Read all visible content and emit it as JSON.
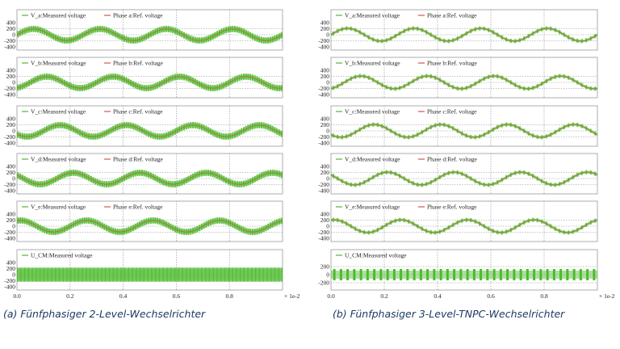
{
  "captions": {
    "a": "(a) Fünfphasiger 2-Level-Wechselrichter",
    "b": "(b) Fünfphasiger 3-Level-TNPC-Wechselrichter"
  },
  "colors": {
    "measured": "#4cbb2c",
    "reference": "#d9534f",
    "grid": "#8a8a8a",
    "frame": "#9a9a9a",
    "caption": "#1f3a64"
  },
  "chart_data": [
    {
      "type": "line",
      "id": "a",
      "inverter": "2-level",
      "x_tick_labels": [
        "0.0",
        "0.2",
        "0.4",
        "0.6",
        "0.8"
      ],
      "x_multiplier": "× 1e-2",
      "xlim": [
        0.0,
        1.0
      ],
      "panels": [
        {
          "id": "V_a",
          "legend": [
            "V_a:Measured voltage",
            "Phase a:Ref. voltage"
          ],
          "yticks": [
            "400",
            "200",
            "0",
            "-200",
            "-400"
          ],
          "ylim": [
            -400,
            400
          ],
          "series": [
            {
              "name": "V_a:Measured voltage",
              "kind": "pwm",
              "amplitude": 190,
              "frequency_periods": 4,
              "phase_deg": 0,
              "levels": [
                -300,
                300
              ]
            },
            {
              "name": "Phase a:Ref. voltage",
              "kind": "sine",
              "amplitude": 190,
              "frequency_periods": 4,
              "phase_deg": 0
            }
          ]
        },
        {
          "id": "V_b",
          "legend": [
            "V_b:Measured voltage",
            "Phase b:Ref. voltage"
          ],
          "yticks": [
            "400",
            "200",
            "0",
            "-200",
            "-400"
          ],
          "ylim": [
            -400,
            400
          ],
          "series": [
            {
              "name": "V_b:Measured voltage",
              "kind": "pwm",
              "amplitude": 190,
              "frequency_periods": 4,
              "phase_deg": -72,
              "levels": [
                -300,
                300
              ]
            },
            {
              "name": "Phase b:Ref. voltage",
              "kind": "sine",
              "amplitude": 190,
              "frequency_periods": 4,
              "phase_deg": -72
            }
          ]
        },
        {
          "id": "V_c",
          "legend": [
            "V_c:Measured voltage",
            "Phase c:Ref. voltage"
          ],
          "yticks": [
            "400",
            "200",
            "0",
            "-200",
            "-400"
          ],
          "ylim": [
            -400,
            400
          ],
          "series": [
            {
              "name": "V_c:Measured voltage",
              "kind": "pwm",
              "amplitude": 190,
              "frequency_periods": 4,
              "phase_deg": -144,
              "levels": [
                -300,
                300
              ]
            },
            {
              "name": "Phase c:Ref. voltage",
              "kind": "sine",
              "amplitude": 190,
              "frequency_periods": 4,
              "phase_deg": -144
            }
          ]
        },
        {
          "id": "V_d",
          "legend": [
            "V_d:Measured voltage",
            "Phase d:Ref. voltage"
          ],
          "yticks": [
            "400",
            "200",
            "0",
            "-200",
            "-400"
          ],
          "ylim": [
            -400,
            400
          ],
          "series": [
            {
              "name": "V_d:Measured voltage",
              "kind": "pwm",
              "amplitude": 190,
              "frequency_periods": 4,
              "phase_deg": -216,
              "levels": [
                -300,
                300
              ]
            },
            {
              "name": "Phase d:Ref. voltage",
              "kind": "sine",
              "amplitude": 190,
              "frequency_periods": 4,
              "phase_deg": -216
            }
          ]
        },
        {
          "id": "V_e",
          "legend": [
            "V_e:Measured voltage",
            "Phase e:Ref. voltage"
          ],
          "yticks": [
            "400",
            "200",
            "0",
            "-200",
            "-400"
          ],
          "ylim": [
            -400,
            400
          ],
          "series": [
            {
              "name": "V_e:Measured voltage",
              "kind": "pwm",
              "amplitude": 190,
              "frequency_periods": 4,
              "phase_deg": -288,
              "levels": [
                -300,
                300
              ]
            },
            {
              "name": "Phase e:Ref. voltage",
              "kind": "sine",
              "amplitude": 190,
              "frequency_periods": 4,
              "phase_deg": -288
            }
          ]
        },
        {
          "id": "U_CM",
          "legend": [
            "U_CM:Measured voltage"
          ],
          "yticks": [
            "400",
            "200",
            "0",
            "-200",
            "-400"
          ],
          "ylim": [
            -400,
            400
          ],
          "series": [
            {
              "name": "U_CM:Measured voltage",
              "kind": "band",
              "low": -180,
              "high": 180
            }
          ]
        }
      ]
    },
    {
      "type": "line",
      "id": "b",
      "inverter": "3-level TNPC",
      "x_tick_labels": [
        "0.0",
        "0.2",
        "0.4",
        "0.6",
        "0.8"
      ],
      "x_multiplier": "× 1e-2",
      "xlim": [
        0.0,
        1.0
      ],
      "panels": [
        {
          "id": "V_a",
          "legend": [
            "V_a:Measured voltage",
            "Phase a:Ref. voltage"
          ],
          "yticks": [
            "400",
            "200",
            "0",
            "-200",
            "-400"
          ],
          "ylim": [
            -400,
            400
          ],
          "series": [
            {
              "name": "V_a:Measured voltage",
              "kind": "sine-thick",
              "amplitude": 210,
              "frequency_periods": 4,
              "phase_deg": 0
            },
            {
              "name": "Phase a:Ref. voltage",
              "kind": "sine",
              "amplitude": 210,
              "frequency_periods": 4,
              "phase_deg": 0
            }
          ]
        },
        {
          "id": "V_b",
          "legend": [
            "V_b:Measured voltage",
            "Phase b:Ref. voltage"
          ],
          "yticks": [
            "400",
            "200",
            "0",
            "-200",
            "-400"
          ],
          "ylim": [
            -400,
            400
          ],
          "series": [
            {
              "name": "V_b:Measured voltage",
              "kind": "sine-thick",
              "amplitude": 210,
              "frequency_periods": 4,
              "phase_deg": -72
            },
            {
              "name": "Phase b:Ref. voltage",
              "kind": "sine",
              "amplitude": 210,
              "frequency_periods": 4,
              "phase_deg": -72
            }
          ]
        },
        {
          "id": "V_c",
          "legend": [
            "V_c:Measured voltage",
            "Phase c:Ref. voltage"
          ],
          "yticks": [
            "400",
            "200",
            "0",
            "-200",
            "-400"
          ],
          "ylim": [
            -400,
            400
          ],
          "series": [
            {
              "name": "V_c:Measured voltage",
              "kind": "sine-thick",
              "amplitude": 210,
              "frequency_periods": 4,
              "phase_deg": -144
            },
            {
              "name": "Phase c:Ref. voltage",
              "kind": "sine",
              "amplitude": 210,
              "frequency_periods": 4,
              "phase_deg": -144
            }
          ]
        },
        {
          "id": "V_d",
          "legend": [
            "V_d:Measured voltage",
            "Phase d:Ref. voltage"
          ],
          "yticks": [
            "400",
            "200",
            "0",
            "-200",
            "-400"
          ],
          "ylim": [
            -400,
            400
          ],
          "series": [
            {
              "name": "V_d:Measured voltage",
              "kind": "sine-thick",
              "amplitude": 210,
              "frequency_periods": 4,
              "phase_deg": -216
            },
            {
              "name": "Phase d:Ref. voltage",
              "kind": "sine",
              "amplitude": 210,
              "frequency_periods": 4,
              "phase_deg": -216
            }
          ]
        },
        {
          "id": "V_e",
          "legend": [
            "V_e:Measured voltage",
            "Phase e:Ref. voltage"
          ],
          "yticks": [
            "400",
            "200",
            "0",
            "-200",
            "-400"
          ],
          "ylim": [
            -400,
            400
          ],
          "series": [
            {
              "name": "V_e:Measured voltage",
              "kind": "sine-thick",
              "amplitude": 210,
              "frequency_periods": 4,
              "phase_deg": -288
            },
            {
              "name": "Phase e:Ref. voltage",
              "kind": "sine",
              "amplitude": 210,
              "frequency_periods": 4,
              "phase_deg": -288
            }
          ]
        },
        {
          "id": "U_CM",
          "legend": [
            "U_CM:Measured voltage"
          ],
          "yticks": [
            "200",
            "0",
            "-200"
          ],
          "ylim": [
            -300,
            300
          ],
          "series": [
            {
              "name": "U_CM:Measured voltage",
              "kind": "band",
              "low": -100,
              "high": 100
            }
          ]
        }
      ]
    }
  ]
}
